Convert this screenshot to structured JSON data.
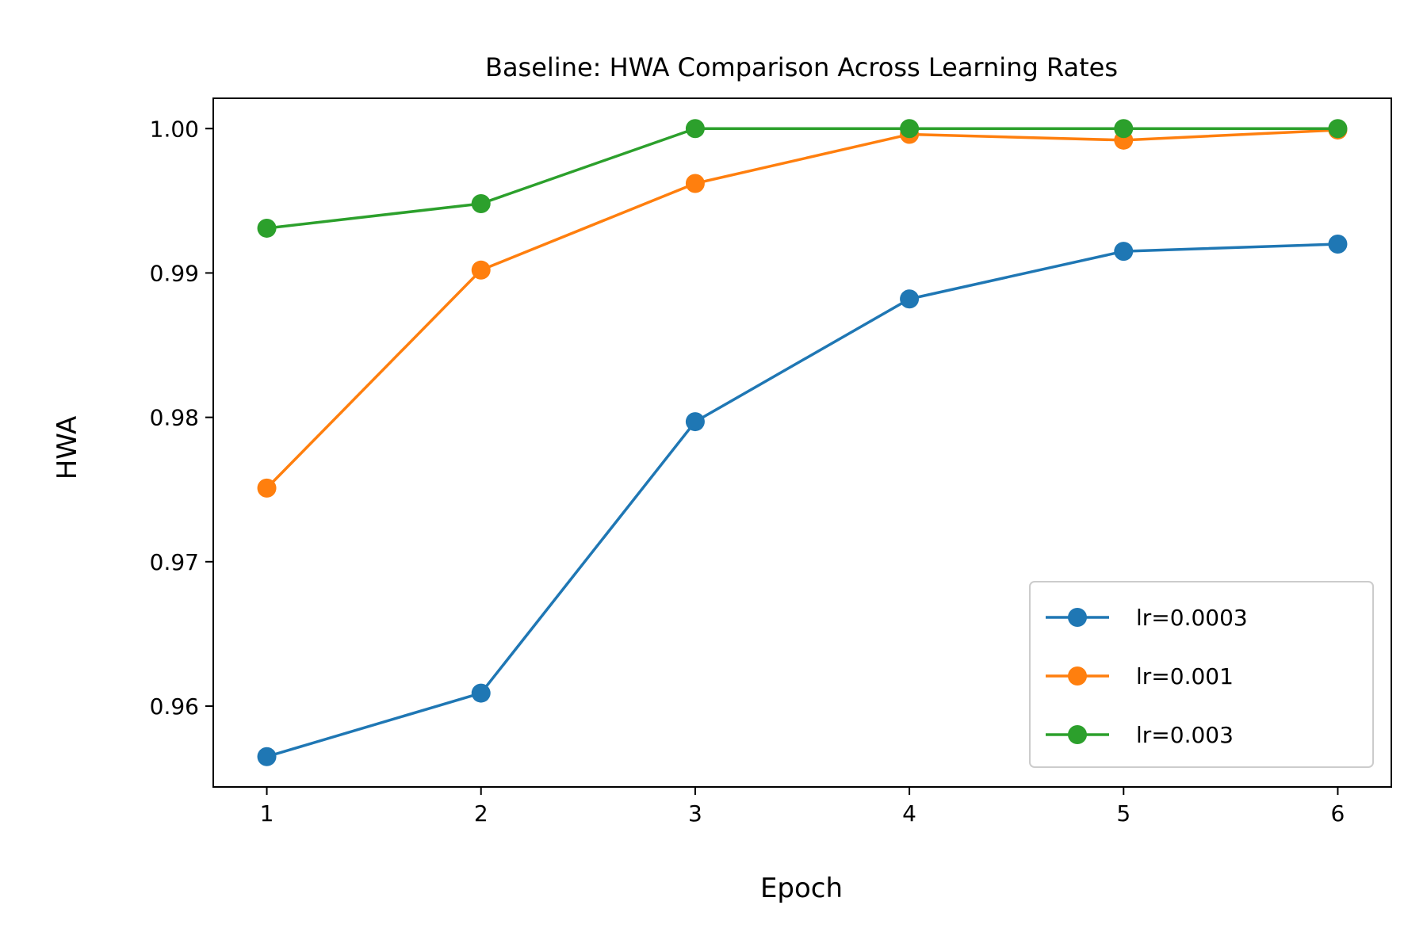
{
  "chart_data": {
    "type": "line",
    "title": "Baseline: HWA Comparison Across Learning Rates",
    "xlabel": "Epoch",
    "ylabel": "HWA",
    "x": [
      1,
      2,
      3,
      4,
      5,
      6
    ],
    "xticks": [
      "1",
      "2",
      "3",
      "4",
      "5",
      "6"
    ],
    "yticks": [
      "0.96",
      "0.97",
      "0.98",
      "0.99",
      "1.00"
    ],
    "xlim": [
      0.75,
      6.25
    ],
    "ylim": [
      0.9544,
      1.0021
    ],
    "grid": false,
    "legend_position": "lower-right",
    "series": [
      {
        "name": "lr=0.0003",
        "color": "#1f77b4",
        "values": [
          0.9565,
          0.9609,
          0.9797,
          0.9882,
          0.9915,
          0.992
        ]
      },
      {
        "name": "lr=0.001",
        "color": "#ff7f0e",
        "values": [
          0.9751,
          0.9902,
          0.9962,
          0.9996,
          0.9992,
          0.9999
        ]
      },
      {
        "name": "lr=0.003",
        "color": "#2ca02c",
        "values": [
          0.9931,
          0.9948,
          1.0,
          1.0,
          1.0,
          1.0
        ]
      }
    ]
  }
}
